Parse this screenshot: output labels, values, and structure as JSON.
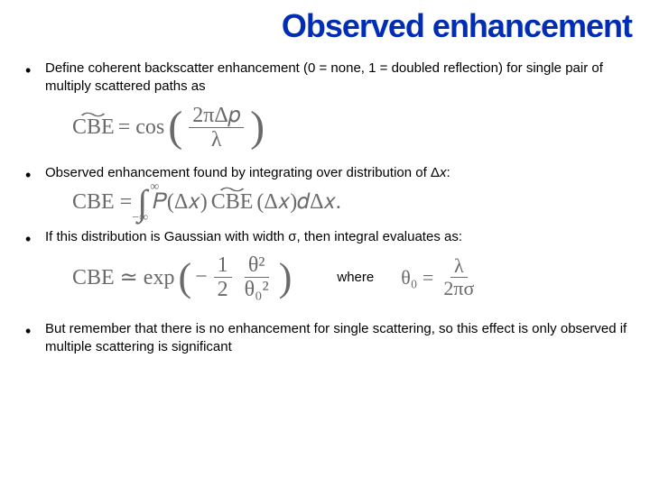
{
  "title": "Observed enhancement",
  "bullets": {
    "b1": "Define coherent backscatter enhancement (0 = none, 1 = doubled reflection) for single pair of multiply scattered paths as",
    "b2_pre": "Observed enhancement found by integrating over distribution of Δ",
    "b2_var": "x",
    "b2_post": ":",
    "b3": "If this distribution is Gaussian with width σ, then integral evaluates as:",
    "b4": "But remember that there is no enhancement for single scattering, so this effect is only observed if multiple scattering is significant"
  },
  "eq1": {
    "lhs": "CBE",
    "eq": " = cos",
    "num": "2πΔ𝑝",
    "den": "λ"
  },
  "eq2": {
    "lhs": "CBE = ",
    "int_top": "∞",
    "int_bot": "−∞",
    "p": "𝑃(Δ𝑥)",
    "cbe": "CBE",
    "arg": "(Δ𝑥)𝑑Δ𝑥."
  },
  "eq3": {
    "lhs": "CBE ≃ exp",
    "minus": "−",
    "half_num": "1",
    "half_den": "2",
    "t_num": "θ²",
    "t_den": "θ₀²"
  },
  "where": "where",
  "eq4": {
    "lhs": "θ₀ = ",
    "num": "λ",
    "den": "2πσ"
  },
  "colors": {
    "title": "#002db3",
    "text": "#000000",
    "equation": "#6a6a6a",
    "background": "#ffffff"
  }
}
